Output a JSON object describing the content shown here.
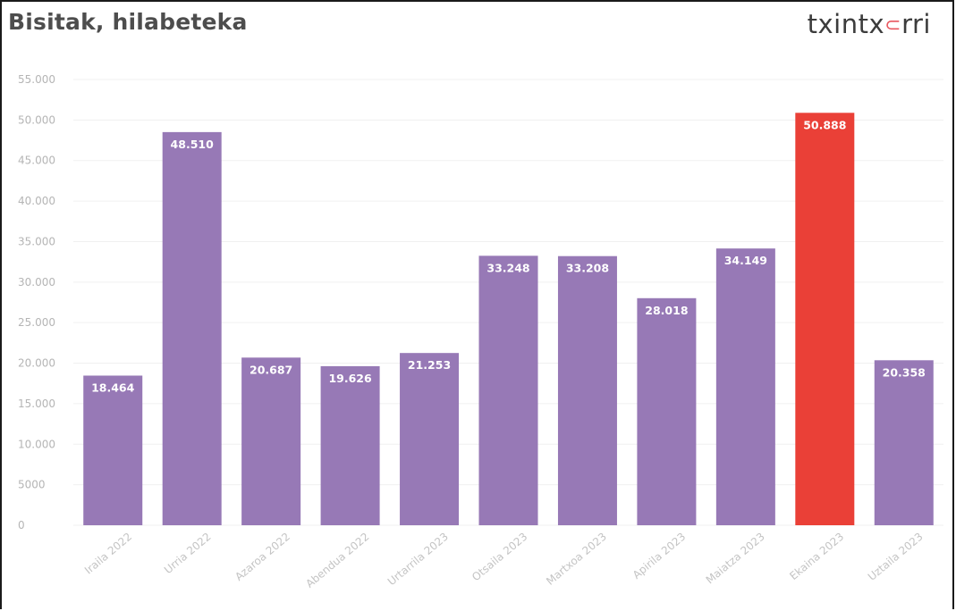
{
  "header": {
    "title": "Bisitak, hilabeteka",
    "logo_text_1": "txintx",
    "logo_text_2": "rri"
  },
  "colors": {
    "bar": "#9779b6",
    "highlight": "#ea4037",
    "grid": "#f0f0f0",
    "title": "#4d4d4d"
  },
  "chart_data": {
    "type": "bar",
    "title": "Bisitak, hilabeteka",
    "xlabel": "",
    "ylabel": "",
    "ylim": [
      0,
      55000
    ],
    "grid": true,
    "yticks": [
      0,
      5000,
      10000,
      15000,
      20000,
      25000,
      30000,
      35000,
      40000,
      45000,
      50000,
      55000
    ],
    "ytick_labels": [
      "0",
      "5000",
      "10.000",
      "15.000",
      "20.000",
      "25.000",
      "30.000",
      "35.000",
      "40.000",
      "45.000",
      "50.000",
      "55.000"
    ],
    "categories": [
      "Iraila 2022",
      "Urria 2022",
      "Azaroa 2022",
      "Abendua 2022",
      "Urtarrila 2023",
      "Otsaila 2023",
      "Martxoa 2023",
      "Apirila 2023",
      "Maiatza 2023",
      "Ekaina 2023",
      "Uztaila 2023"
    ],
    "values": [
      18464,
      48510,
      20687,
      19626,
      21253,
      33248,
      33208,
      28018,
      34149,
      50888,
      20358
    ],
    "value_labels": [
      "18.464",
      "48.510",
      "20.687",
      "19.626",
      "21.253",
      "33.248",
      "33.208",
      "28.018",
      "34.149",
      "50.888",
      "20.358"
    ],
    "highlight_index": 9
  }
}
